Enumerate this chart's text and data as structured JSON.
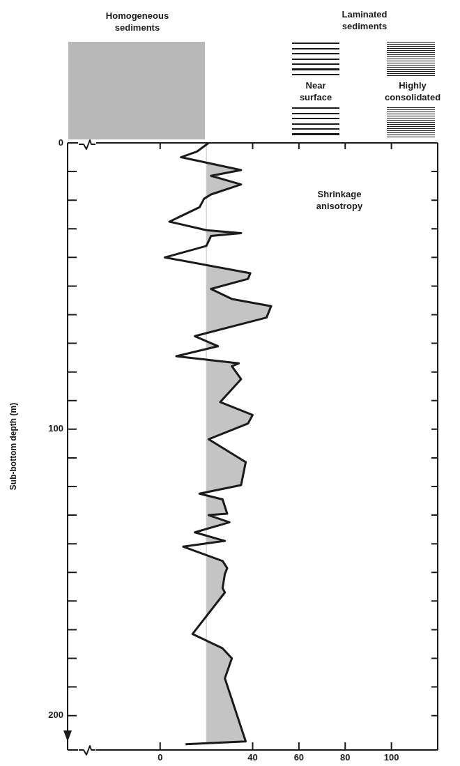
{
  "chart_data": {
    "type": "line",
    "orientation": "horizontal",
    "ylabel": "Sub-bottom depth (m)",
    "x": [
      0,
      3,
      5,
      9.5,
      11.5,
      14.5,
      18,
      19.5,
      22.5,
      27.5,
      30.5,
      31.5,
      32.5,
      36,
      40,
      45.5,
      47.5,
      51,
      54.5,
      57,
      61,
      67.5,
      71,
      74.5,
      77,
      78,
      82.5,
      90.5,
      95,
      98,
      103.5,
      111.5,
      119.5,
      122.5,
      124.5,
      129.5,
      130,
      132.5,
      136,
      139,
      141,
      146,
      148.5,
      150.5,
      155.5,
      157,
      171.5,
      176.5,
      180,
      187,
      209,
      210
    ],
    "series": [
      {
        "color": "#1a1a1a",
        "values": [
          21,
          16,
          9,
          35,
          22,
          35,
          22,
          19,
          17,
          4,
          20,
          35,
          22,
          20,
          2,
          39,
          38,
          22,
          31,
          48,
          46,
          15,
          25,
          7,
          34,
          31,
          35,
          26,
          40,
          38,
          21,
          37,
          35,
          17,
          27,
          29,
          21,
          30,
          15,
          28,
          10,
          27,
          29,
          28,
          27,
          28,
          14,
          27,
          31,
          28,
          37,
          11
        ]
      }
    ],
    "xlim": [
      -40,
      120
    ],
    "xticks": [
      0,
      40,
      60,
      80,
      100
    ],
    "ylim": [
      212,
      0
    ],
    "yticks": [
      0,
      {
        "value": 10,
        "label": null
      },
      {
        "value": 20,
        "label": null
      },
      {
        "value": 30,
        "label": null
      },
      {
        "value": 40,
        "label": null
      },
      {
        "value": 50,
        "label": null
      },
      {
        "value": 60,
        "label": null
      },
      {
        "value": 70,
        "label": null
      },
      {
        "value": 80,
        "label": null
      },
      {
        "value": 90,
        "label": null
      },
      100,
      {
        "value": 110,
        "label": null
      },
      {
        "value": 120,
        "label": null
      },
      {
        "value": 130,
        "label": null
      },
      {
        "value": 140,
        "label": null
      },
      {
        "value": 150,
        "label": null
      },
      {
        "value": 160,
        "label": null
      },
      {
        "value": 170,
        "label": null
      },
      {
        "value": 180,
        "label": null
      },
      {
        "value": 190,
        "label": null
      },
      200
    ],
    "ref_lines": [
      {
        "axis": "x",
        "value": 20,
        "color": "#c4c4c4"
      }
    ],
    "annotations": [
      "Homogeneous sediments",
      "Laminated sediments",
      "Near surface",
      "Highly consolidated",
      "Shrinkage anisotropy"
    ]
  }
}
